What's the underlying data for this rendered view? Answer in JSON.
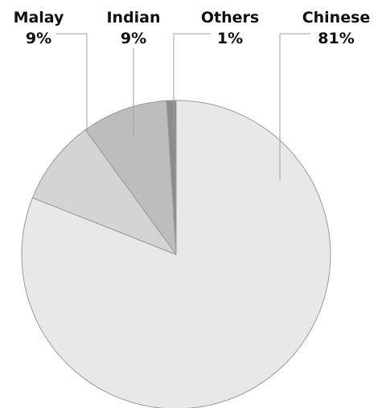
{
  "chart_data": {
    "type": "pie",
    "start": "top",
    "direction": "counterclockwise",
    "slices": [
      {
        "name": "Others",
        "value": 1,
        "label_value": "1%",
        "color": "#8c8c8c"
      },
      {
        "name": "Indian",
        "value": 9,
        "label_value": "9%",
        "color": "#bdbdbd"
      },
      {
        "name": "Malay",
        "value": 9,
        "label_value": "9%",
        "color": "#d4d4d4"
      },
      {
        "name": "Chinese",
        "value": 81,
        "label_value": "81%",
        "color": "#e8e8e8"
      }
    ],
    "outline_color": "#9a9a9a"
  }
}
